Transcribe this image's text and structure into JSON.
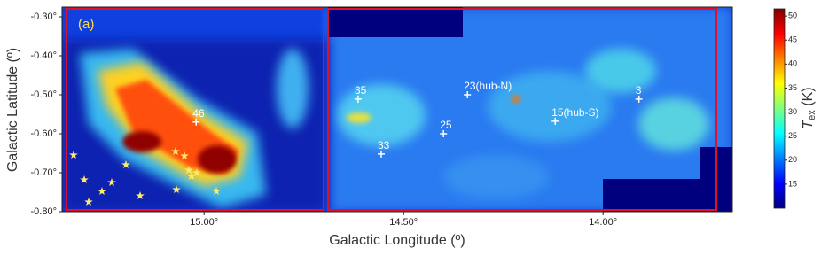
{
  "chart_data": {
    "type": "heatmap",
    "xlabel": "Galactic Longitude (º)",
    "ylabel": "Galactic Latitude (º)",
    "panel_label": "(a)",
    "xlim": [
      15.356,
      13.676
    ],
    "ylim": [
      -0.8,
      -0.275
    ],
    "xticks": [
      {
        "value": 15.0,
        "label": "15.00°"
      },
      {
        "value": 14.5,
        "label": "14.50°"
      },
      {
        "value": 14.0,
        "label": "14.00°"
      }
    ],
    "yticks": [
      {
        "value": -0.3,
        "label": "-0.30°"
      },
      {
        "value": -0.4,
        "label": "-0.40°"
      },
      {
        "value": -0.5,
        "label": "-0.50°"
      },
      {
        "value": -0.6,
        "label": "-0.60°"
      },
      {
        "value": -0.7,
        "label": "-0.70°"
      },
      {
        "value": -0.8,
        "label": "-0.80°"
      }
    ],
    "colorbar": {
      "label": {
        "symbol": "T",
        "subscript": "ex",
        "unit": "(K)"
      },
      "clim": [
        10,
        51.5
      ],
      "ticks": [
        15,
        20,
        25,
        30,
        35,
        40,
        45,
        50
      ],
      "colormap": [
        "#00007f",
        "#0000ff",
        "#007fff",
        "#00ffff",
        "#7fff7f",
        "#ffff00",
        "#ff7f00",
        "#ff0000",
        "#7f0000"
      ]
    },
    "annotations": [
      {
        "text": "35",
        "x": 14.614,
        "y": -0.511
      },
      {
        "text": "23(hub-N)",
        "x": 14.34,
        "y": -0.5
      },
      {
        "text": "3",
        "x": 13.91,
        "y": -0.511
      },
      {
        "text": "46",
        "x": 15.02,
        "y": -0.57
      },
      {
        "text": "25",
        "x": 14.4,
        "y": -0.6
      },
      {
        "text": "15(hub-S)",
        "x": 14.12,
        "y": -0.568
      },
      {
        "text": "33",
        "x": 14.556,
        "y": -0.652
      }
    ]
  }
}
